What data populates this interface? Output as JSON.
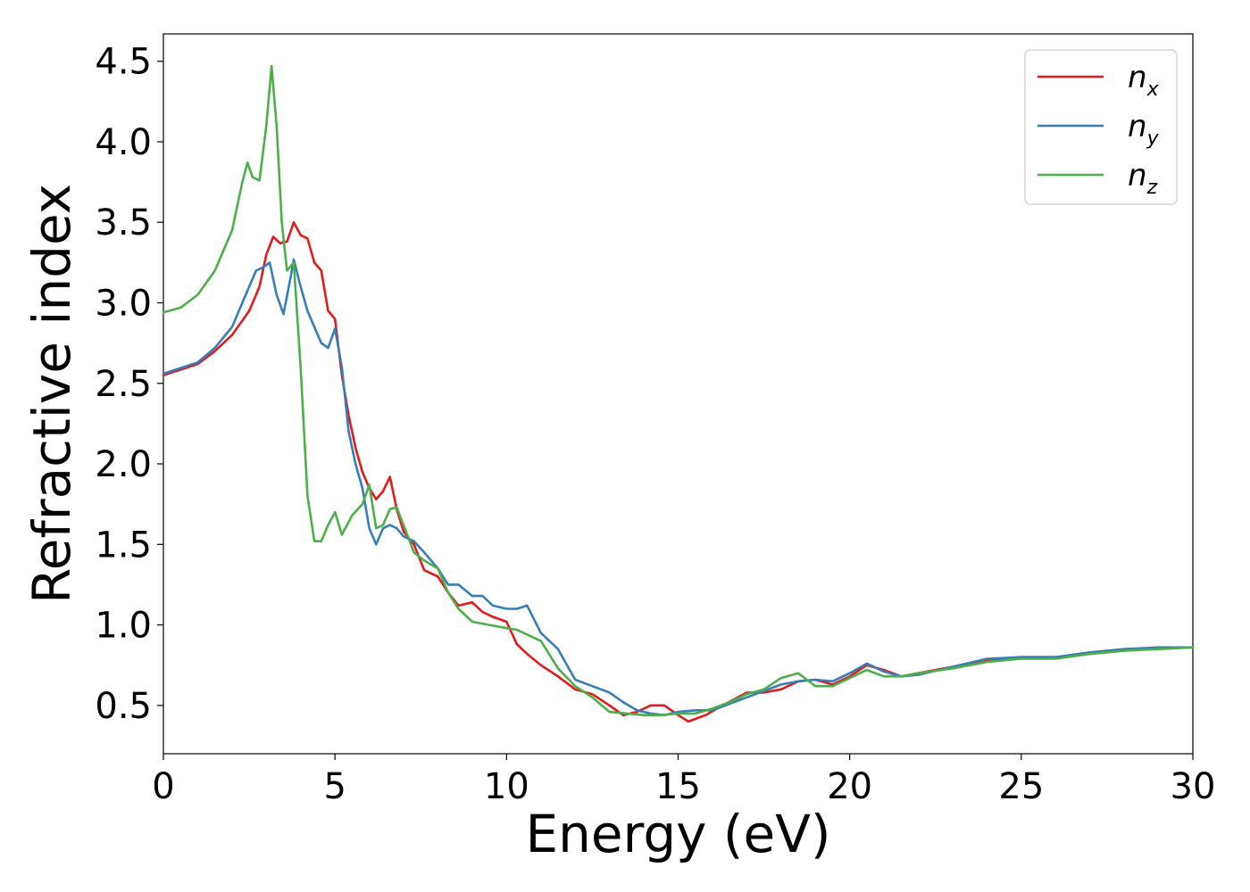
{
  "chart_data": {
    "type": "line",
    "title": "",
    "xlabel": "Energy (eV)",
    "ylabel": "Refractive index",
    "xlim": [
      0,
      30
    ],
    "ylim": [
      0.2,
      4.67
    ],
    "xticks": [
      0,
      5,
      10,
      15,
      20,
      25,
      30
    ],
    "xtick_labels": [
      "0",
      "5",
      "10",
      "15",
      "20",
      "25",
      "30"
    ],
    "yticks": [
      0.5,
      1.0,
      1.5,
      2.0,
      2.5,
      3.0,
      3.5,
      4.0,
      4.5
    ],
    "ytick_labels": [
      "0.5",
      "1.0",
      "1.5",
      "2.0",
      "2.5",
      "3.0",
      "3.5",
      "4.0",
      "4.5"
    ],
    "grid": false,
    "legend_position": "top-right",
    "series": [
      {
        "name": "n_x",
        "label_base": "n",
        "label_sub": "x",
        "color": "#e41a1c",
        "points": [
          [
            0,
            2.55
          ],
          [
            1,
            2.62
          ],
          [
            1.5,
            2.7
          ],
          [
            2,
            2.8
          ],
          [
            2.5,
            2.95
          ],
          [
            2.8,
            3.1
          ],
          [
            3.0,
            3.3
          ],
          [
            3.2,
            3.41
          ],
          [
            3.4,
            3.37
          ],
          [
            3.6,
            3.38
          ],
          [
            3.8,
            3.5
          ],
          [
            4.0,
            3.42
          ],
          [
            4.2,
            3.4
          ],
          [
            4.4,
            3.25
          ],
          [
            4.6,
            3.2
          ],
          [
            4.8,
            2.95
          ],
          [
            5.0,
            2.9
          ],
          [
            5.2,
            2.55
          ],
          [
            5.4,
            2.3
          ],
          [
            5.6,
            2.1
          ],
          [
            5.8,
            1.95
          ],
          [
            6.0,
            1.85
          ],
          [
            6.2,
            1.78
          ],
          [
            6.4,
            1.83
          ],
          [
            6.6,
            1.92
          ],
          [
            6.8,
            1.72
          ],
          [
            7.0,
            1.58
          ],
          [
            7.3,
            1.5
          ],
          [
            7.6,
            1.34
          ],
          [
            8.0,
            1.3
          ],
          [
            8.3,
            1.2
          ],
          [
            8.6,
            1.12
          ],
          [
            9.0,
            1.14
          ],
          [
            9.3,
            1.08
          ],
          [
            9.6,
            1.05
          ],
          [
            10.0,
            1.02
          ],
          [
            10.3,
            0.88
          ],
          [
            10.6,
            0.82
          ],
          [
            11.0,
            0.75
          ],
          [
            11.5,
            0.68
          ],
          [
            12.0,
            0.6
          ],
          [
            12.5,
            0.57
          ],
          [
            13.0,
            0.5
          ],
          [
            13.4,
            0.44
          ],
          [
            13.8,
            0.46
          ],
          [
            14.2,
            0.5
          ],
          [
            14.6,
            0.5
          ],
          [
            15.0,
            0.44
          ],
          [
            15.3,
            0.4
          ],
          [
            15.8,
            0.44
          ],
          [
            16.3,
            0.5
          ],
          [
            17.0,
            0.58
          ],
          [
            17.5,
            0.58
          ],
          [
            18.0,
            0.6
          ],
          [
            18.5,
            0.65
          ],
          [
            19.0,
            0.66
          ],
          [
            19.5,
            0.63
          ],
          [
            20.0,
            0.68
          ],
          [
            20.5,
            0.75
          ],
          [
            21.0,
            0.72
          ],
          [
            21.5,
            0.68
          ],
          [
            22.0,
            0.7
          ],
          [
            23.0,
            0.74
          ],
          [
            24.0,
            0.78
          ],
          [
            25.0,
            0.8
          ],
          [
            26.0,
            0.8
          ],
          [
            27.0,
            0.82
          ],
          [
            28.0,
            0.84
          ],
          [
            29.0,
            0.86
          ],
          [
            30.0,
            0.86
          ]
        ]
      },
      {
        "name": "n_y",
        "label_base": "n",
        "label_sub": "y",
        "color": "#377eb8",
        "points": [
          [
            0,
            2.56
          ],
          [
            1,
            2.63
          ],
          [
            1.5,
            2.72
          ],
          [
            2,
            2.85
          ],
          [
            2.4,
            3.05
          ],
          [
            2.7,
            3.2
          ],
          [
            2.9,
            3.22
          ],
          [
            3.1,
            3.25
          ],
          [
            3.3,
            3.05
          ],
          [
            3.5,
            2.93
          ],
          [
            3.7,
            3.15
          ],
          [
            3.8,
            3.27
          ],
          [
            4.0,
            3.1
          ],
          [
            4.2,
            2.95
          ],
          [
            4.4,
            2.85
          ],
          [
            4.6,
            2.75
          ],
          [
            4.8,
            2.72
          ],
          [
            5.0,
            2.84
          ],
          [
            5.2,
            2.6
          ],
          [
            5.4,
            2.2
          ],
          [
            5.6,
            2.0
          ],
          [
            5.8,
            1.85
          ],
          [
            6.0,
            1.6
          ],
          [
            6.2,
            1.5
          ],
          [
            6.4,
            1.6
          ],
          [
            6.6,
            1.62
          ],
          [
            6.8,
            1.6
          ],
          [
            7.0,
            1.55
          ],
          [
            7.3,
            1.52
          ],
          [
            7.6,
            1.45
          ],
          [
            8.0,
            1.35
          ],
          [
            8.3,
            1.25
          ],
          [
            8.6,
            1.25
          ],
          [
            9.0,
            1.18
          ],
          [
            9.3,
            1.18
          ],
          [
            9.6,
            1.12
          ],
          [
            10.0,
            1.1
          ],
          [
            10.3,
            1.1
          ],
          [
            10.6,
            1.12
          ],
          [
            11.0,
            0.95
          ],
          [
            11.5,
            0.85
          ],
          [
            12.0,
            0.66
          ],
          [
            12.5,
            0.62
          ],
          [
            13.0,
            0.58
          ],
          [
            13.4,
            0.52
          ],
          [
            13.8,
            0.47
          ],
          [
            14.2,
            0.45
          ],
          [
            14.6,
            0.44
          ],
          [
            15.0,
            0.46
          ],
          [
            15.5,
            0.47
          ],
          [
            16.0,
            0.47
          ],
          [
            17.0,
            0.55
          ],
          [
            18.0,
            0.63
          ],
          [
            18.5,
            0.65
          ],
          [
            19.0,
            0.66
          ],
          [
            19.5,
            0.65
          ],
          [
            20.0,
            0.7
          ],
          [
            20.5,
            0.76
          ],
          [
            21.0,
            0.71
          ],
          [
            21.5,
            0.68
          ],
          [
            22.0,
            0.69
          ],
          [
            23.0,
            0.74
          ],
          [
            24.0,
            0.79
          ],
          [
            25.0,
            0.8
          ],
          [
            26.0,
            0.8
          ],
          [
            27.0,
            0.83
          ],
          [
            28.0,
            0.85
          ],
          [
            29.0,
            0.86
          ],
          [
            30.0,
            0.86
          ]
        ]
      },
      {
        "name": "n_z",
        "label_base": "n",
        "label_sub": "z",
        "color": "#4daf4a",
        "points": [
          [
            0,
            2.94
          ],
          [
            0.5,
            2.97
          ],
          [
            1,
            3.05
          ],
          [
            1.5,
            3.2
          ],
          [
            2.0,
            3.45
          ],
          [
            2.3,
            3.75
          ],
          [
            2.45,
            3.87
          ],
          [
            2.6,
            3.78
          ],
          [
            2.8,
            3.76
          ],
          [
            3.0,
            4.1
          ],
          [
            3.15,
            4.47
          ],
          [
            3.3,
            4.1
          ],
          [
            3.45,
            3.5
          ],
          [
            3.6,
            3.2
          ],
          [
            3.8,
            3.25
          ],
          [
            4.0,
            2.6
          ],
          [
            4.2,
            1.8
          ],
          [
            4.4,
            1.52
          ],
          [
            4.6,
            1.52
          ],
          [
            4.8,
            1.62
          ],
          [
            5.0,
            1.7
          ],
          [
            5.2,
            1.56
          ],
          [
            5.5,
            1.68
          ],
          [
            5.8,
            1.75
          ],
          [
            6.0,
            1.87
          ],
          [
            6.2,
            1.6
          ],
          [
            6.4,
            1.62
          ],
          [
            6.6,
            1.72
          ],
          [
            6.8,
            1.73
          ],
          [
            7.0,
            1.62
          ],
          [
            7.3,
            1.45
          ],
          [
            7.6,
            1.4
          ],
          [
            8.0,
            1.35
          ],
          [
            8.3,
            1.2
          ],
          [
            8.6,
            1.1
          ],
          [
            9.0,
            1.02
          ],
          [
            9.5,
            1.0
          ],
          [
            10.0,
            0.98
          ],
          [
            10.3,
            0.97
          ],
          [
            10.6,
            0.94
          ],
          [
            11.0,
            0.9
          ],
          [
            11.5,
            0.73
          ],
          [
            12.0,
            0.62
          ],
          [
            12.5,
            0.55
          ],
          [
            13.0,
            0.46
          ],
          [
            13.5,
            0.45
          ],
          [
            14.0,
            0.44
          ],
          [
            14.5,
            0.44
          ],
          [
            15.0,
            0.45
          ],
          [
            15.5,
            0.45
          ],
          [
            16.0,
            0.48
          ],
          [
            16.5,
            0.52
          ],
          [
            17.0,
            0.57
          ],
          [
            17.5,
            0.6
          ],
          [
            18.0,
            0.67
          ],
          [
            18.5,
            0.7
          ],
          [
            19.0,
            0.62
          ],
          [
            19.5,
            0.62
          ],
          [
            20.0,
            0.67
          ],
          [
            20.5,
            0.72
          ],
          [
            21.0,
            0.68
          ],
          [
            21.5,
            0.68
          ],
          [
            22.0,
            0.7
          ],
          [
            23.0,
            0.73
          ],
          [
            24.0,
            0.77
          ],
          [
            25.0,
            0.79
          ],
          [
            26.0,
            0.79
          ],
          [
            27.0,
            0.82
          ],
          [
            28.0,
            0.84
          ],
          [
            29.0,
            0.85
          ],
          [
            30.0,
            0.86
          ]
        ]
      }
    ]
  }
}
